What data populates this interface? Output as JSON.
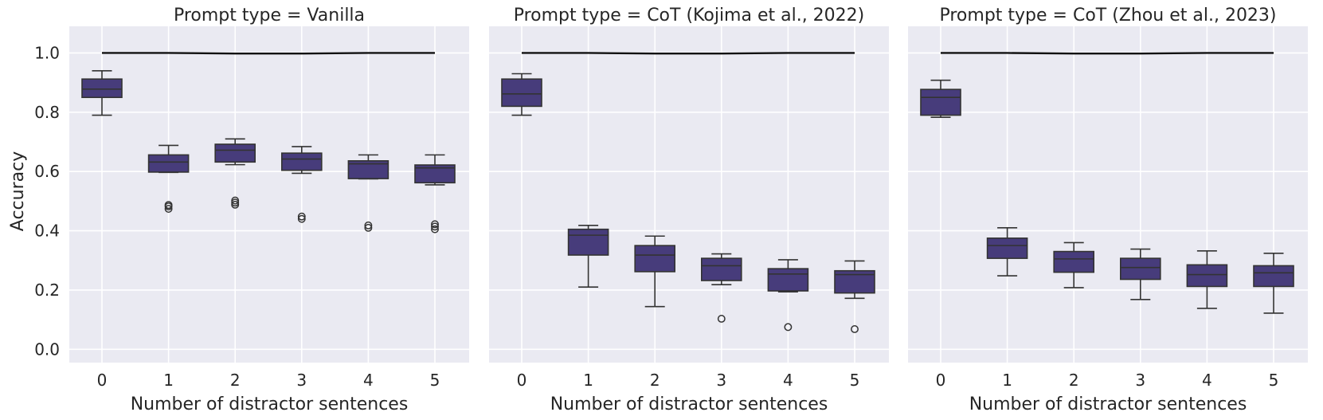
{
  "chart_data": {
    "type": "box",
    "ylabel": "Accuracy",
    "xlabel": "Number of distractor sentences",
    "ylim": [
      -0.045,
      1.09
    ],
    "yticks": [
      0.0,
      0.2,
      0.4,
      0.6,
      0.8,
      1.0
    ],
    "ytick_labels": [
      "0.0",
      "0.2",
      "0.4",
      "0.6",
      "0.8",
      "1.0"
    ],
    "categories": [
      "0",
      "1",
      "2",
      "3",
      "4",
      "5"
    ],
    "grid": true,
    "box_color": "#473C7B",
    "line_color": "#333333",
    "reference_line_color": "#111111",
    "panels": [
      {
        "title": "Prompt type = Vanilla",
        "reference_line": [
          1.0,
          1.0,
          0.998,
          0.998,
          1.0,
          1.0
        ],
        "boxes": [
          {
            "whislo": 0.79,
            "q1": 0.85,
            "med": 0.878,
            "q3": 0.912,
            "whishi": 0.94,
            "fliers": []
          },
          {
            "whislo": 0.597,
            "q1": 0.598,
            "med": 0.632,
            "q3": 0.656,
            "whishi": 0.688,
            "fliers": [
              0.474,
              0.482,
              0.487
            ]
          },
          {
            "whislo": 0.623,
            "q1": 0.632,
            "med": 0.672,
            "q3": 0.692,
            "whishi": 0.71,
            "fliers": [
              0.488,
              0.495,
              0.502
            ]
          },
          {
            "whislo": 0.594,
            "q1": 0.604,
            "med": 0.642,
            "q3": 0.662,
            "whishi": 0.684,
            "fliers": [
              0.44,
              0.448
            ]
          },
          {
            "whislo": 0.575,
            "q1": 0.576,
            "med": 0.626,
            "q3": 0.636,
            "whishi": 0.656,
            "fliers": [
              0.41,
              0.418
            ]
          },
          {
            "whislo": 0.555,
            "q1": 0.562,
            "med": 0.612,
            "q3": 0.622,
            "whishi": 0.656,
            "fliers": [
              0.405,
              0.414,
              0.422
            ]
          }
        ]
      },
      {
        "title": "Prompt type = CoT (Kojima et al., 2022)",
        "reference_line": [
          1.0,
          1.0,
          0.998,
          0.998,
          1.0,
          1.0
        ],
        "boxes": [
          {
            "whislo": 0.79,
            "q1": 0.82,
            "med": 0.862,
            "q3": 0.912,
            "whishi": 0.93,
            "fliers": []
          },
          {
            "whislo": 0.21,
            "q1": 0.318,
            "med": 0.385,
            "q3": 0.405,
            "whishi": 0.418,
            "fliers": []
          },
          {
            "whislo": 0.144,
            "q1": 0.262,
            "med": 0.318,
            "q3": 0.35,
            "whishi": 0.382,
            "fliers": []
          },
          {
            "whislo": 0.218,
            "q1": 0.232,
            "med": 0.282,
            "q3": 0.307,
            "whishi": 0.322,
            "fliers": [
              0.103
            ]
          },
          {
            "whislo": 0.194,
            "q1": 0.197,
            "med": 0.254,
            "q3": 0.272,
            "whishi": 0.302,
            "fliers": [
              0.075
            ]
          },
          {
            "whislo": 0.172,
            "q1": 0.19,
            "med": 0.252,
            "q3": 0.265,
            "whishi": 0.298,
            "fliers": [
              0.068
            ]
          }
        ]
      },
      {
        "title": "Prompt type = CoT (Zhou et al., 2023)",
        "reference_line": [
          1.0,
          1.0,
          0.998,
          0.998,
          1.0,
          1.0
        ],
        "boxes": [
          {
            "whislo": 0.783,
            "q1": 0.79,
            "med": 0.85,
            "q3": 0.877,
            "whishi": 0.908,
            "fliers": []
          },
          {
            "whislo": 0.248,
            "q1": 0.307,
            "med": 0.35,
            "q3": 0.375,
            "whishi": 0.41,
            "fliers": []
          },
          {
            "whislo": 0.208,
            "q1": 0.26,
            "med": 0.305,
            "q3": 0.33,
            "whishi": 0.36,
            "fliers": []
          },
          {
            "whislo": 0.168,
            "q1": 0.236,
            "med": 0.276,
            "q3": 0.307,
            "whishi": 0.338,
            "fliers": []
          },
          {
            "whislo": 0.138,
            "q1": 0.212,
            "med": 0.252,
            "q3": 0.285,
            "whishi": 0.332,
            "fliers": []
          },
          {
            "whislo": 0.122,
            "q1": 0.212,
            "med": 0.258,
            "q3": 0.282,
            "whishi": 0.324,
            "fliers": []
          }
        ]
      }
    ]
  }
}
